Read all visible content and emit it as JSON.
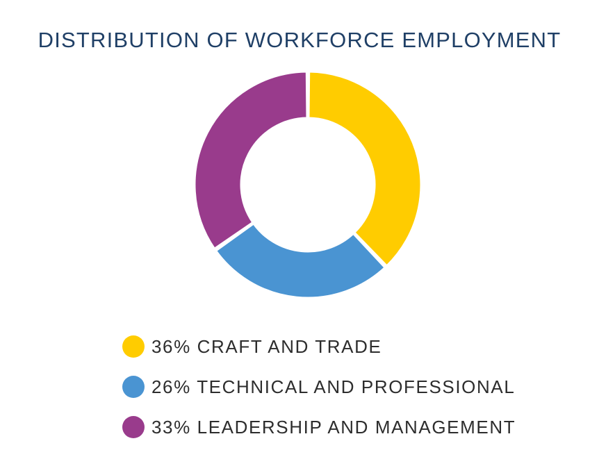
{
  "chart_data": {
    "type": "pie",
    "title": "DISTRIBUTION OF WORKFORCE EMPLOYMENT",
    "slices": [
      {
        "label": "CRAFT AND TRADE",
        "percent_text": "36%",
        "value": 36,
        "color": "#ffcc00"
      },
      {
        "label": "TECHNICAL AND PROFESSIONAL",
        "percent_text": "26%",
        "value": 26,
        "color": "#4a94d2"
      },
      {
        "label": "LEADERSHIP AND MANAGEMENT",
        "percent_text": "33%",
        "value": 33,
        "color": "#993b8c"
      }
    ],
    "donut": true,
    "legend_position": "bottom"
  }
}
